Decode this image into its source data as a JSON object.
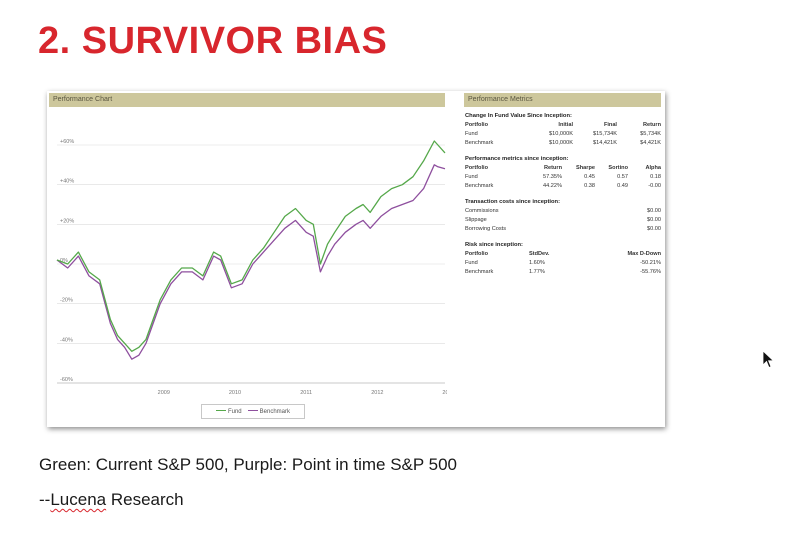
{
  "slide": {
    "title": "2. SURVIVOR BIAS",
    "caption_line1": "Green: Current S&P 500, Purple: Point in time S&P 500",
    "caption_line2_prefix": "--",
    "caption_line2_name": "Lucena",
    "caption_line2_rest": " Research"
  },
  "chart_panel": {
    "header": "Performance Chart"
  },
  "chart_data": {
    "type": "line",
    "title": "Performance Chart",
    "xlabel": "",
    "ylabel": "",
    "x_tick_labels": [
      "2009",
      "2010",
      "2011",
      "2012",
      "2013"
    ],
    "y_tick_labels": [
      "+60%",
      "+40%",
      "+20%",
      "0%",
      "-20%",
      "-40%",
      "-60%"
    ],
    "ylim": [
      -60,
      60
    ],
    "grid": true,
    "legend_position": "bottom-center",
    "x": [
      2008.0,
      2008.15,
      2008.3,
      2008.45,
      2008.6,
      2008.75,
      2008.85,
      2008.95,
      2009.05,
      2009.15,
      2009.25,
      2009.35,
      2009.45,
      2009.6,
      2009.75,
      2009.9,
      2010.05,
      2010.2,
      2010.3,
      2010.45,
      2010.6,
      2010.75,
      2010.9,
      2011.05,
      2011.2,
      2011.35,
      2011.5,
      2011.6,
      2011.7,
      2011.8,
      2011.9,
      2012.05,
      2012.2,
      2012.3,
      2012.4,
      2012.55,
      2012.7,
      2012.85,
      2013.0,
      2013.15,
      2013.3,
      2013.35,
      2013.45
    ],
    "series": [
      {
        "name": "Fund",
        "color": "#55a84a",
        "values": [
          2,
          0,
          6,
          -4,
          -8,
          -28,
          -36,
          -40,
          -44,
          -42,
          -38,
          -28,
          -18,
          -8,
          -2,
          -2,
          -6,
          6,
          4,
          -10,
          -8,
          2,
          8,
          16,
          24,
          28,
          22,
          20,
          0,
          10,
          16,
          24,
          28,
          30,
          26,
          34,
          38,
          40,
          44,
          52,
          62,
          60,
          56
        ]
      },
      {
        "name": "Benchmark",
        "color": "#8e4f9e",
        "values": [
          2,
          -2,
          4,
          -6,
          -10,
          -30,
          -38,
          -42,
          -48,
          -46,
          -40,
          -30,
          -20,
          -10,
          -4,
          -4,
          -8,
          4,
          2,
          -12,
          -10,
          0,
          6,
          12,
          18,
          22,
          16,
          14,
          -4,
          4,
          10,
          16,
          20,
          22,
          18,
          24,
          28,
          30,
          32,
          38,
          50,
          49,
          48
        ]
      }
    ]
  },
  "metrics_panel": {
    "header": "Performance Metrics",
    "change": {
      "title": "Change In Fund Value Since Inception:",
      "headers": [
        "Portfolio",
        "Initial",
        "Final",
        "Return"
      ],
      "rows": [
        [
          "Fund",
          "$10,000K",
          "$15,734K",
          "$5,734K"
        ],
        [
          "Benchmark",
          "$10,000K",
          "$14,421K",
          "$4,421K"
        ]
      ]
    },
    "performance": {
      "title": "Performance metrics since inception:",
      "headers": [
        "Portfolio",
        "Return",
        "Sharpe",
        "Sortino",
        "Alpha"
      ],
      "rows": [
        [
          "Fund",
          "57.35%",
          "0.45",
          "0.57",
          "0.18"
        ],
        [
          "Benchmark",
          "44.22%",
          "0.38",
          "0.49",
          "-0.00"
        ]
      ]
    },
    "transaction": {
      "title": "Transaction costs since inception:",
      "rows": [
        [
          "Commissions",
          "$0.00"
        ],
        [
          "Slippage",
          "$0.00"
        ],
        [
          "Borrowing Costs",
          "$0.00"
        ]
      ]
    },
    "risk": {
      "title": "Risk since inception:",
      "headers": [
        "Portfolio",
        "StdDev.",
        "Max D-Down"
      ],
      "rows": [
        [
          "Fund",
          "1.60%",
          "-50.21%"
        ],
        [
          "Benchmark",
          "1.77%",
          "-55.76%"
        ]
      ]
    }
  }
}
